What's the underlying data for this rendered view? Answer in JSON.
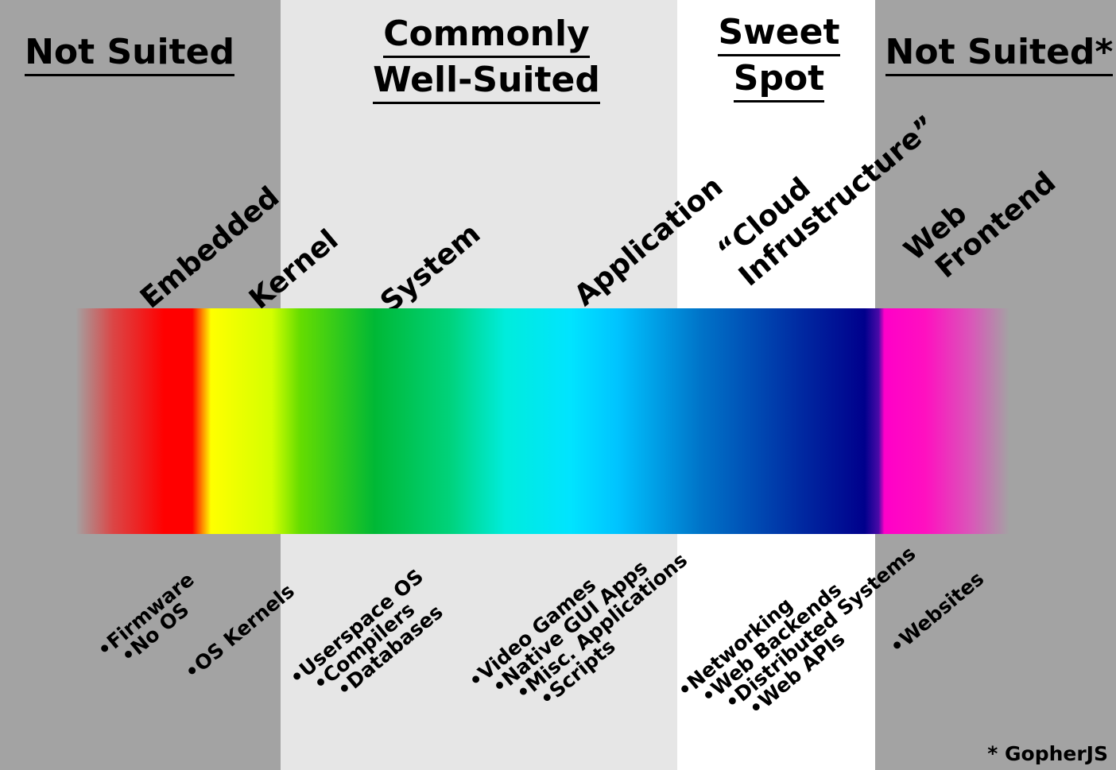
{
  "zones": [
    {
      "title_lines": [
        "Not Suited"
      ],
      "color": "#a3a3a3"
    },
    {
      "title_lines": [
        "Commonly",
        "Well-Suited"
      ],
      "color": "#e6e6e6"
    },
    {
      "title_lines": [
        "Sweet",
        "Spot"
      ],
      "color": "#ffffff"
    },
    {
      "title_lines": [
        "Not Suited*"
      ],
      "color": "#a3a3a3"
    }
  ],
  "bands": [
    {
      "label_lines": [
        "Embedded"
      ],
      "items": [
        "Firmware",
        "No OS"
      ]
    },
    {
      "label_lines": [
        "Kernel"
      ],
      "items": [
        "OS Kernels"
      ]
    },
    {
      "label_lines": [
        "System"
      ],
      "items": [
        "Userspace OS",
        "Compilers",
        "Databases"
      ]
    },
    {
      "label_lines": [
        "Application"
      ],
      "items": [
        "Video Games",
        "Native GUI Apps",
        "Misc. Applications",
        "Scripts"
      ]
    },
    {
      "label_lines": [
        "“Cloud",
        "Infrustructure”"
      ],
      "items": [
        "Networking",
        "Web Backends",
        "Distributed Systems",
        "Web APIs"
      ]
    },
    {
      "label_lines": [
        "Web",
        "Frontend"
      ],
      "items": [
        "Websites"
      ]
    }
  ],
  "footnote": "* GopherJS"
}
